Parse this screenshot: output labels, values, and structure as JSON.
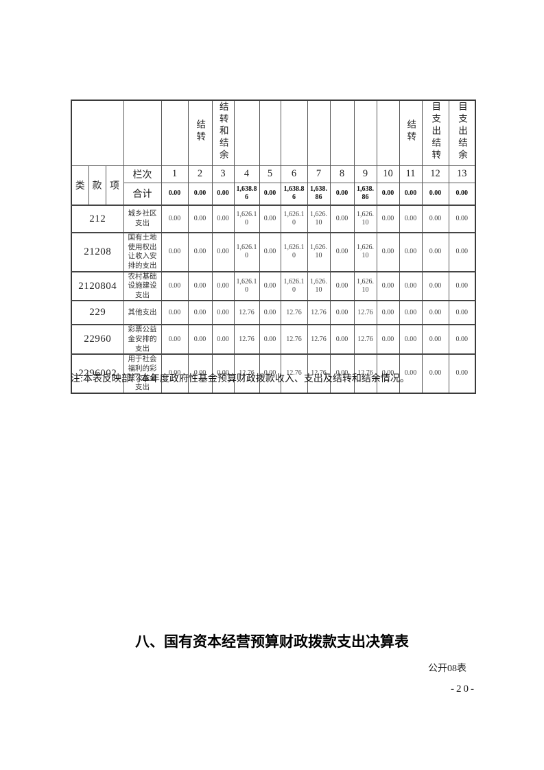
{
  "table": {
    "class_label": "类",
    "section_label": "款",
    "item_label": "项",
    "column_index_label": "栏次",
    "total_label": "合计",
    "vertical_headers": [
      "",
      "结转",
      "结转和结余",
      "",
      "",
      "",
      "",
      "",
      "",
      "",
      "结转",
      "目支出结转",
      "目支出结余"
    ],
    "column_numbers": [
      "1",
      "2",
      "3",
      "4",
      "5",
      "6",
      "7",
      "8",
      "9",
      "10",
      "11",
      "12",
      "13"
    ],
    "total_values": [
      "0.00",
      "0.00",
      "0.00",
      "1,638.86",
      "0.00",
      "1,638.86",
      "1,638.86",
      "0.00",
      "1,638.86",
      "0.00",
      "0.00",
      "0.00",
      "0.00"
    ],
    "rows": [
      {
        "code": "212",
        "name": "城乡社区支出",
        "values": [
          "0.00",
          "0.00",
          "0.00",
          "1,626.10",
          "0.00",
          "1,626.10",
          "1,626.10",
          "0.00",
          "1,626.10",
          "0.00",
          "0.00",
          "0.00",
          "0.00"
        ]
      },
      {
        "code": "21208",
        "name": "国有土地使用权出让收入安排的支出",
        "values": [
          "0.00",
          "0.00",
          "0.00",
          "1,626.10",
          "0.00",
          "1,626.10",
          "1,626.10",
          "0.00",
          "1,626.10",
          "0.00",
          "0.00",
          "0.00",
          "0.00"
        ]
      },
      {
        "code": "2120804",
        "name": "农村基础设施建设支出",
        "values": [
          "0.00",
          "0.00",
          "0.00",
          "1,626.10",
          "0.00",
          "1,626.10",
          "1,626.10",
          "0.00",
          "1,626.10",
          "0.00",
          "0.00",
          "0.00",
          "0.00"
        ]
      },
      {
        "code": "229",
        "name": "其他支出",
        "values": [
          "0.00",
          "0.00",
          "0.00",
          "12.76",
          "0.00",
          "12.76",
          "12.76",
          "0.00",
          "12.76",
          "0.00",
          "0.00",
          "0.00",
          "0.00"
        ]
      },
      {
        "code": "22960",
        "name": "彩票公益金安排的支出",
        "values": [
          "0.00",
          "0.00",
          "0.00",
          "12.76",
          "0.00",
          "12.76",
          "12.76",
          "0.00",
          "12.76",
          "0.00",
          "0.00",
          "0.00",
          "0.00"
        ]
      },
      {
        "code": "2296002",
        "name": "用于社会福利的彩票公益金支出",
        "values": [
          "0.00",
          "0.00",
          "0.00",
          "12.76",
          "0.00",
          "12.76",
          "12.76",
          "0.00",
          "12.76",
          "0.00",
          "0.00",
          "0.00",
          "0.00"
        ]
      }
    ]
  },
  "note": "注:本表反映部门本年度政府性基金预算财政拨款收入、支出及结转和结余情况。",
  "section_heading": "八、国有资本经营预算财政拨款支出决算表",
  "table_label": "公开08表",
  "page_number": "-20-",
  "colors": {
    "ink": "#1a1a1a",
    "grid": "#565656",
    "value_text": "#3d3d3d"
  }
}
